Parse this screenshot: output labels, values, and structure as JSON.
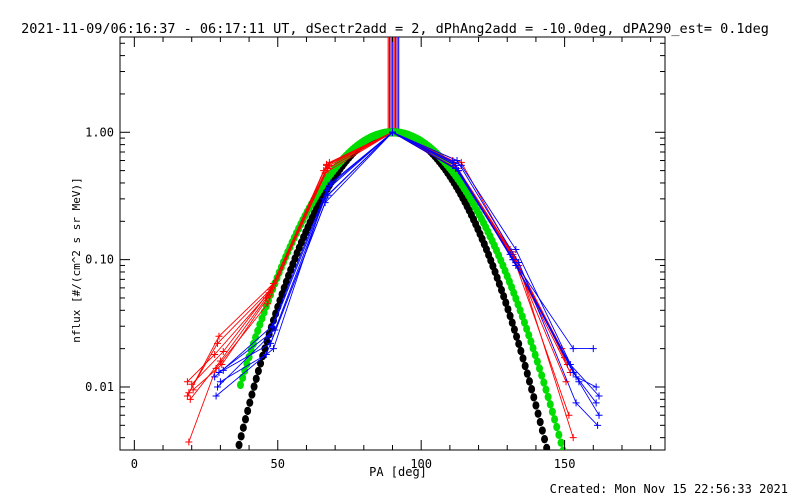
{
  "header": {
    "title": "2021-11-09/06:16:37 - 06:17:11 UT, dSectr2add = 2, dPhAng2add = -10.0deg, dPA290_est=  0.1deg"
  },
  "footer": {
    "created": "Created: Mon Nov 15 22:56:33 2021"
  },
  "chart_data": {
    "type": "scatter",
    "xlabel": "PA [deg]",
    "ylabel": "nflux [#/(cm^2 s sr MeV)]",
    "xlim": [
      -5,
      185
    ],
    "ylim": [
      0.0032,
      5.6
    ],
    "yscale": "log",
    "x_ticks": [
      0,
      50,
      100,
      150
    ],
    "x_tick_labels": [
      "0",
      "50",
      "100",
      "150"
    ],
    "y_ticks": [
      0.01,
      0.1,
      1.0
    ],
    "y_tick_labels": [
      "0.01",
      "0.10",
      "1.00"
    ],
    "grid": false,
    "colors": {
      "red": "#ff0000",
      "blue": "#0000ff",
      "black": "#000000",
      "green": "#00dd00"
    },
    "vertical_lines": {
      "x_from": 88.5,
      "x_to": 92.5,
      "y_from": 1.0,
      "y_to": 5.6,
      "colors": [
        "#ff0000",
        "#0000ff"
      ]
    },
    "series": [
      {
        "color": "#000000",
        "marker": "dot",
        "shape": "gaussian",
        "center": 90,
        "sigma": 22.5,
        "x_from": 35,
        "x_to": 148
      },
      {
        "color": "#00dd00",
        "marker": "dot",
        "shape": "gaussian",
        "center": 90,
        "sigma": 24.8,
        "x_from": 37,
        "x_to": 151
      }
    ],
    "traces": [
      {
        "color": "#ff0000",
        "x": [
          18.5,
          28,
          47,
          67,
          90,
          112,
          132,
          150
        ],
        "y": [
          0.011,
          0.018,
          0.055,
          0.55,
          1.0,
          0.55,
          0.11,
          0.017
        ]
      },
      {
        "color": "#ff0000",
        "x": [
          19,
          29,
          48,
          66,
          90,
          113,
          133,
          151
        ],
        "y": [
          0.009,
          0.022,
          0.06,
          0.5,
          1.0,
          0.5,
          0.1,
          0.015
        ]
      },
      {
        "color": "#ff0000",
        "x": [
          19.5,
          30,
          46,
          68,
          90,
          114,
          131,
          149
        ],
        "y": [
          0.008,
          0.016,
          0.05,
          0.58,
          1.0,
          0.58,
          0.12,
          0.02
        ]
      },
      {
        "color": "#ff0000",
        "x": [
          20,
          31,
          47.5,
          67.5,
          90,
          111,
          132,
          152
        ],
        "y": [
          0.0105,
          0.019,
          0.058,
          0.52,
          1.0,
          0.6,
          0.1,
          0.013
        ]
      },
      {
        "color": "#ff0000",
        "x": [
          18.5,
          29.5,
          48.5,
          66.5,
          90,
          112.5,
          133,
          150.5
        ],
        "y": [
          0.0085,
          0.025,
          0.065,
          0.48,
          1.0,
          0.52,
          0.095,
          0.011
        ]
      },
      {
        "color": "#ff0000",
        "x": [
          19,
          28.5,
          46.5,
          67,
          90,
          113,
          134,
          153
        ],
        "y": [
          0.0037,
          0.014,
          0.045,
          0.56,
          1.0,
          0.5,
          0.09,
          0.004
        ]
      },
      {
        "color": "#ff0000",
        "x": [
          20.5,
          30.5,
          47,
          68,
          90,
          111.5,
          131.5,
          151.5
        ],
        "y": [
          0.0095,
          0.015,
          0.052,
          0.55,
          1.0,
          0.57,
          0.115,
          0.006
        ]
      },
      {
        "color": "#0000ff",
        "x": [
          28,
          48,
          67,
          90,
          112,
          132,
          153,
          160
        ],
        "y": [
          0.012,
          0.03,
          0.35,
          1.0,
          0.55,
          0.1,
          0.02,
          0.02
        ]
      },
      {
        "color": "#0000ff",
        "x": [
          29,
          47,
          68,
          90,
          113,
          133,
          154,
          161
        ],
        "y": [
          0.01,
          0.025,
          0.38,
          1.0,
          0.5,
          0.09,
          0.012,
          0.01
        ]
      },
      {
        "color": "#0000ff",
        "x": [
          28.5,
          48.5,
          66,
          90,
          111,
          131,
          152,
          162
        ],
        "y": [
          0.0085,
          0.02,
          0.3,
          1.0,
          0.58,
          0.11,
          0.015,
          0.0085
        ]
      },
      {
        "color": "#0000ff",
        "x": [
          30,
          46,
          67.5,
          90,
          112,
          132,
          153,
          161
        ],
        "y": [
          0.011,
          0.018,
          0.32,
          1.0,
          0.52,
          0.1,
          0.013,
          0.0075
        ]
      },
      {
        "color": "#0000ff",
        "x": [
          29.5,
          49,
          68.5,
          90,
          114,
          133,
          155,
          162
        ],
        "y": [
          0.013,
          0.028,
          0.4,
          1.0,
          0.55,
          0.12,
          0.011,
          0.006
        ]
      },
      {
        "color": "#0000ff",
        "x": [
          31,
          47.5,
          66.5,
          90,
          112.5,
          134,
          154,
          161.5
        ],
        "y": [
          0.0135,
          0.022,
          0.28,
          1.0,
          0.6,
          0.095,
          0.0075,
          0.005
        ]
      }
    ]
  }
}
